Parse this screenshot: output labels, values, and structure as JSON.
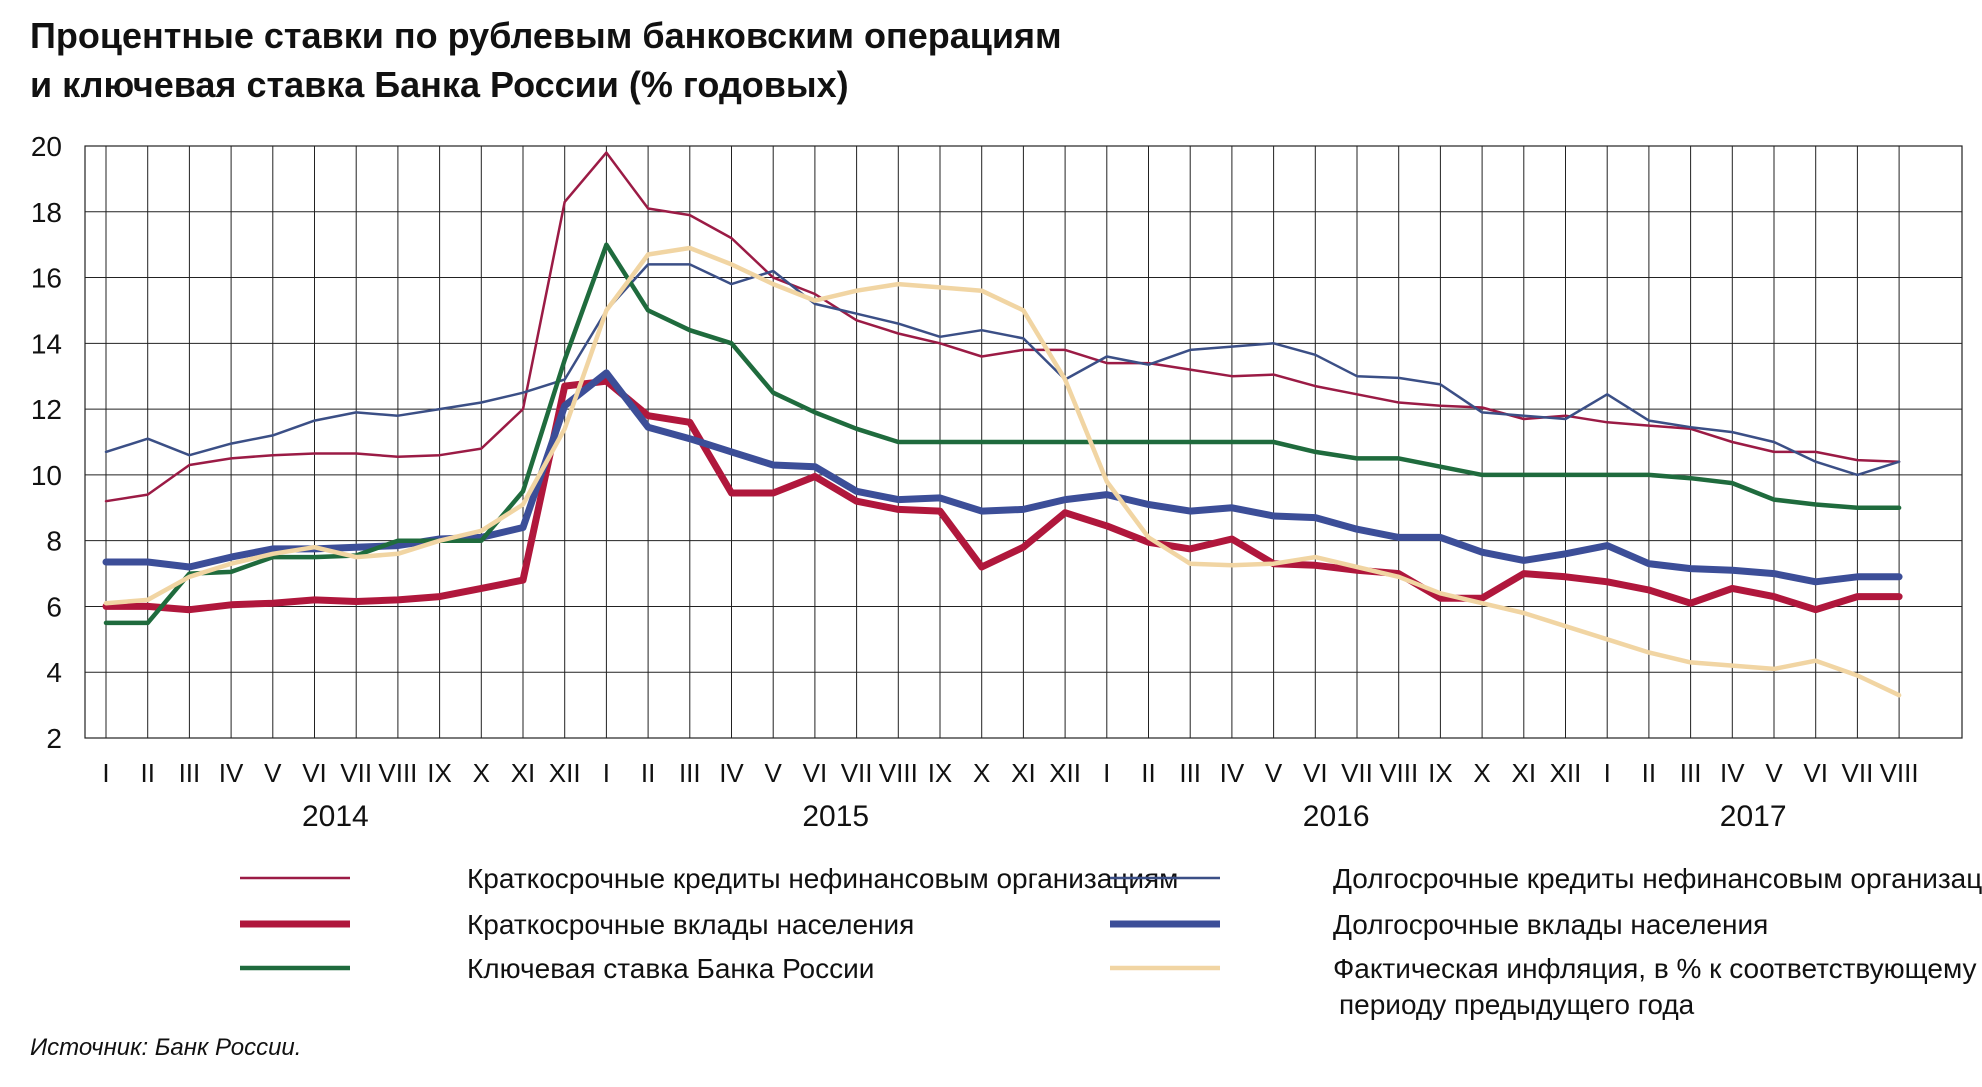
{
  "chart_data": {
    "type": "line",
    "title_lines": [
      "Процентные ставки по рублевым банковским операциям",
      "и ключевая ставка Банка России (% годовых)"
    ],
    "ylim": [
      2,
      20
    ],
    "yticks": [
      2,
      4,
      6,
      8,
      10,
      12,
      14,
      16,
      18,
      20
    ],
    "grid": true,
    "month_labels": [
      "I",
      "II",
      "III",
      "IV",
      "V",
      "VI",
      "VII",
      "VIII",
      "IX",
      "X",
      "XI",
      "XII",
      "I",
      "II",
      "III",
      "IV",
      "V",
      "VI",
      "VII",
      "VIII",
      "IX",
      "X",
      "XI",
      "XII",
      "I",
      "II",
      "III",
      "IV",
      "V",
      "VI",
      "VII",
      "VIII",
      "IX",
      "X",
      "XI",
      "XII",
      "I",
      "II",
      "III",
      "IV",
      "V",
      "VI",
      "VII",
      "VIII"
    ],
    "years": [
      {
        "label": "2014",
        "start_index": 0,
        "end_index": 11
      },
      {
        "label": "2015",
        "start_index": 12,
        "end_index": 23
      },
      {
        "label": "2016",
        "start_index": 24,
        "end_index": 35
      },
      {
        "label": "2017",
        "start_index": 36,
        "end_index": 43
      }
    ],
    "legend_position": "bottom",
    "series": [
      {
        "name": "Краткосрочные кредиты нефинансовым организациям",
        "color": "#9b1b45",
        "width": 2.5,
        "values": [
          9.2,
          9.4,
          10.3,
          10.5,
          10.6,
          10.65,
          10.65,
          10.55,
          10.6,
          10.8,
          12.0,
          18.3,
          19.8,
          18.1,
          17.9,
          17.2,
          16.0,
          15.5,
          14.7,
          14.3,
          14.0,
          13.6,
          13.8,
          13.8,
          13.4,
          13.4,
          13.2,
          13.0,
          13.05,
          12.7,
          12.45,
          12.2,
          12.1,
          12.05,
          11.7,
          11.8,
          11.6,
          11.5,
          11.4,
          11.0,
          10.7,
          10.7,
          10.45,
          10.4
        ]
      },
      {
        "name": "Долгосрочные кредиты нефинансовым организациям",
        "color": "#3b4f86",
        "width": 2.5,
        "values": [
          10.7,
          11.1,
          10.6,
          10.95,
          11.2,
          11.65,
          11.9,
          11.8,
          12.0,
          12.2,
          12.5,
          12.9,
          15.0,
          16.4,
          16.4,
          15.8,
          16.2,
          15.2,
          14.9,
          14.6,
          14.2,
          14.4,
          14.15,
          12.9,
          13.6,
          13.35,
          13.8,
          13.9,
          14.0,
          13.65,
          13.0,
          12.95,
          12.75,
          11.9,
          11.8,
          11.7,
          12.45,
          11.65,
          11.45,
          11.3,
          11.0,
          10.4,
          10.0,
          10.4
        ]
      },
      {
        "name": "Краткосрочные вклады населения",
        "color": "#b0173c",
        "width": 7,
        "values": [
          6.0,
          6.0,
          5.9,
          6.05,
          6.1,
          6.2,
          6.15,
          6.2,
          6.3,
          6.55,
          6.8,
          12.7,
          12.85,
          11.8,
          11.6,
          9.45,
          9.45,
          9.95,
          9.2,
          8.95,
          8.9,
          7.2,
          7.8,
          8.85,
          8.45,
          7.95,
          7.75,
          8.05,
          7.3,
          7.25,
          7.1,
          7.0,
          6.25,
          6.25,
          7.0,
          6.9,
          6.75,
          6.5,
          6.1,
          6.55,
          6.3,
          5.9,
          6.3,
          6.3
        ]
      },
      {
        "name": "Долгосрочные вклады населения",
        "color": "#3c4e98",
        "width": 7,
        "values": [
          7.35,
          7.35,
          7.2,
          7.5,
          7.75,
          7.75,
          7.8,
          7.85,
          8.05,
          8.1,
          8.4,
          12.1,
          13.1,
          11.45,
          11.1,
          10.7,
          10.3,
          10.25,
          9.5,
          9.25,
          9.3,
          8.9,
          8.95,
          9.25,
          9.4,
          9.1,
          8.9,
          9.0,
          8.75,
          8.7,
          8.35,
          8.1,
          8.1,
          7.65,
          7.4,
          7.6,
          7.85,
          7.3,
          7.15,
          7.1,
          7.0,
          6.75,
          6.9,
          6.9
        ]
      },
      {
        "name": "Ключевая ставка Банка России",
        "color": "#1f6b3d",
        "width": 4.5,
        "values": [
          5.5,
          5.5,
          7.0,
          7.05,
          7.5,
          7.5,
          7.55,
          8.0,
          8.0,
          8.0,
          9.5,
          13.5,
          17.0,
          15.0,
          14.4,
          14.0,
          12.5,
          11.9,
          11.4,
          11.0,
          11.0,
          11.0,
          11.0,
          11.0,
          11.0,
          11.0,
          11.0,
          11.0,
          11.0,
          10.7,
          10.5,
          10.5,
          10.25,
          10.0,
          10.0,
          10.0,
          10.0,
          10.0,
          9.9,
          9.75,
          9.25,
          9.1,
          9.0,
          9.0
        ]
      },
      {
        "name": "Фактическая инфляция, в % к соответствующему периоду предыдущего года",
        "name_lines": [
          "Фактическая инфляция, в % к соответствующему",
          "периоду предыдущего года"
        ],
        "color": "#f1d5a3",
        "width": 4.5,
        "values": [
          6.1,
          6.2,
          6.9,
          7.3,
          7.6,
          7.8,
          7.5,
          7.6,
          8.0,
          8.3,
          9.1,
          11.4,
          15.0,
          16.7,
          16.9,
          16.4,
          15.8,
          15.3,
          15.6,
          15.8,
          15.7,
          15.6,
          15.0,
          12.9,
          9.8,
          8.1,
          7.3,
          7.25,
          7.3,
          7.5,
          7.2,
          6.9,
          6.4,
          6.1,
          5.8,
          5.4,
          5.0,
          4.6,
          4.3,
          4.2,
          4.1,
          4.35,
          3.9,
          3.3
        ]
      }
    ]
  },
  "source_text": "Источник: Банк России."
}
